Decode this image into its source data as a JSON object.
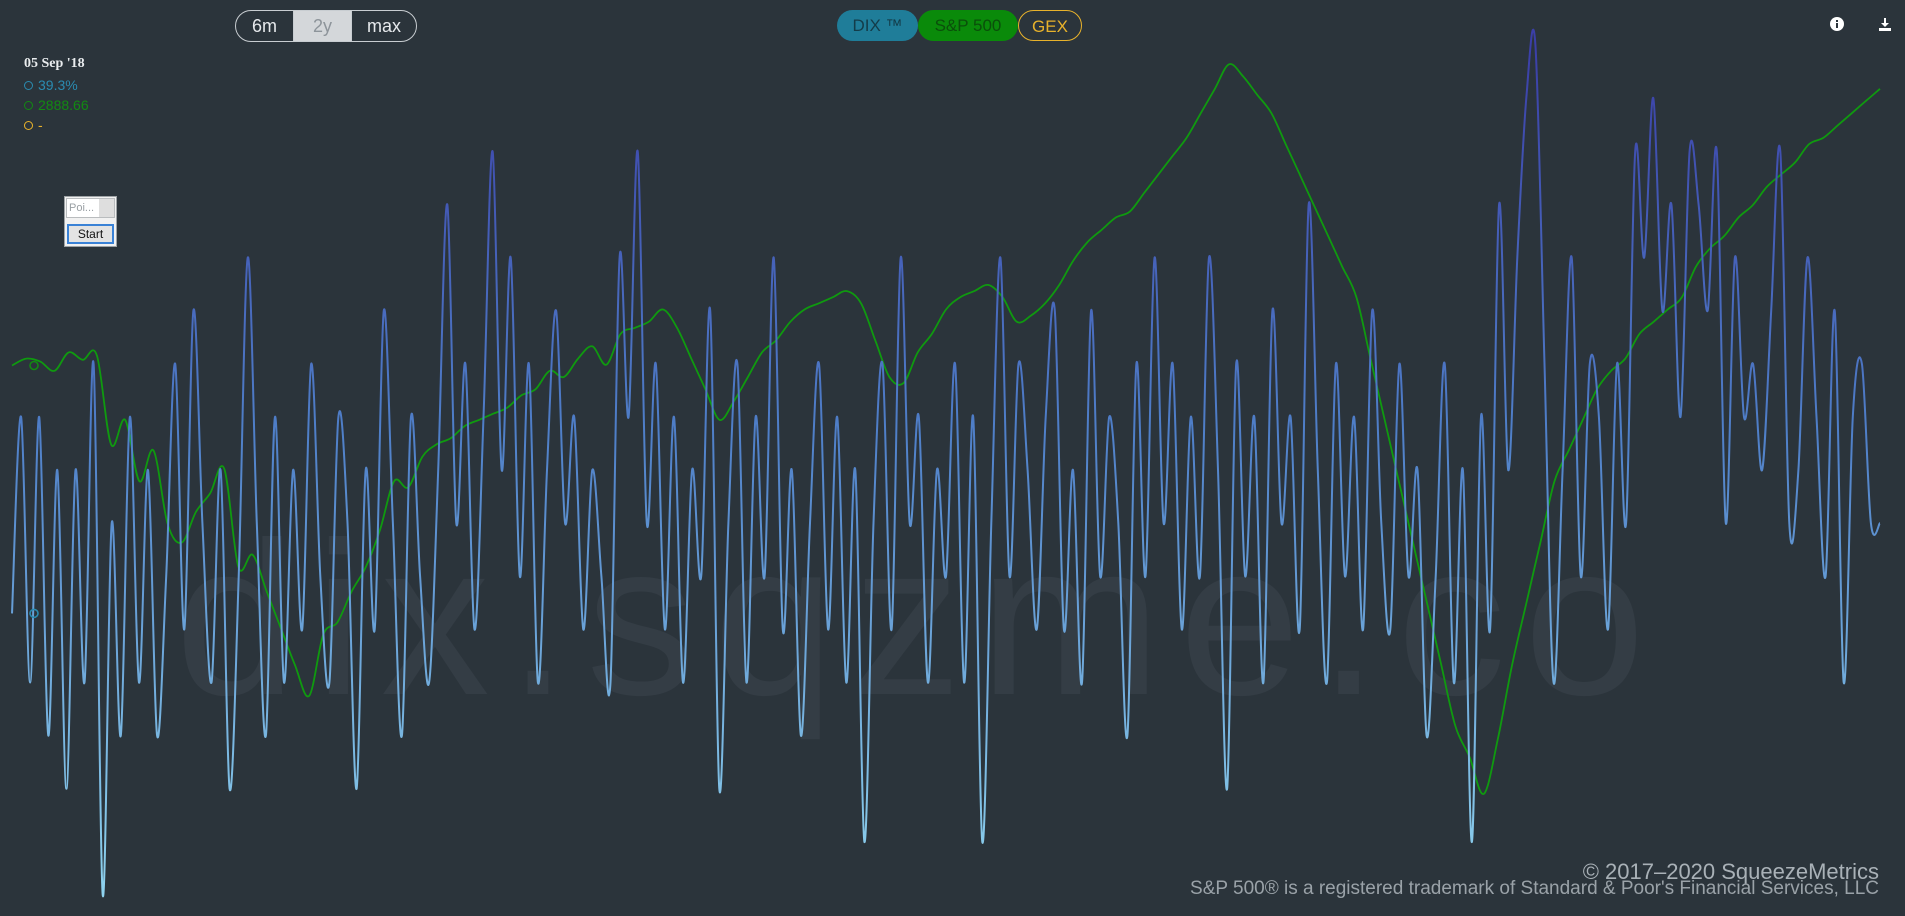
{
  "range_buttons": [
    {
      "label": "6m",
      "active": false
    },
    {
      "label": "2y",
      "active": true
    },
    {
      "label": "max",
      "active": false
    }
  ],
  "series_toggles": {
    "dix": "DIX ™",
    "spx": "S&P 500",
    "gex": "GEX"
  },
  "icons": {
    "info": "info-icon",
    "download": "download-icon"
  },
  "tooltip": {
    "date": "05 Sep '18",
    "dix_value": "39.3%",
    "spx_value": "2888.66",
    "gex_value": "-",
    "dix_color": "#2a8bb0",
    "spx_color": "#128a12",
    "gex_color": "#e8b22b"
  },
  "poi_widget": {
    "select_text": "Poi...",
    "start_label": "Start"
  },
  "watermark": "dix.sqzme.co",
  "footer": {
    "copyright": "© 2017–2020 SqueezeMetrics",
    "trademark": "S&P 500® is a registered trademark of Standard & Poor's Financial Services, LLC"
  },
  "colors": {
    "background": "#2b343b",
    "dix_line_light": "#7ec0e8",
    "dix_line_dark": "#3b56b2",
    "spx_line": "#0f9a0f",
    "gex": "#e8b22b"
  },
  "chart_data": {
    "type": "line",
    "title": "",
    "xlabel": "",
    "ylabel": "",
    "grid": false,
    "x_start": "05 Sep '18",
    "series": [
      {
        "name": "DIX ™",
        "unit": "%",
        "y_range": [
          34,
          50
        ],
        "values": [
          39.3,
          43,
          38,
          43,
          37,
          42,
          36,
          42,
          38,
          44,
          34,
          41,
          37,
          43,
          38,
          42,
          37,
          40,
          44,
          39,
          45,
          41,
          38,
          42,
          36,
          40,
          46,
          41,
          37,
          43,
          38,
          42,
          39,
          44,
          40,
          38,
          43,
          41,
          36,
          42,
          39,
          45,
          41,
          37,
          43,
          40,
          38,
          42,
          47,
          41,
          44,
          39,
          43,
          48,
          42,
          46,
          40,
          44,
          38,
          42,
          45,
          41,
          43,
          39,
          42,
          40,
          38,
          46,
          43,
          48,
          41,
          44,
          39,
          43,
          38,
          42,
          40,
          45,
          36,
          41,
          44,
          38,
          43,
          40,
          46,
          39,
          42,
          37,
          41,
          44,
          39,
          43,
          38,
          42,
          35,
          41,
          44,
          39,
          46,
          41,
          43,
          38,
          42,
          40,
          44,
          38,
          43,
          35,
          41,
          46,
          40,
          44,
          42,
          39,
          43,
          45,
          39,
          42,
          38,
          45,
          40,
          43,
          41,
          37,
          44,
          40,
          46,
          41,
          44,
          39,
          43,
          40,
          46,
          42,
          36,
          44,
          40,
          43,
          38,
          45,
          41,
          43,
          39,
          47,
          42,
          38,
          44,
          40,
          43,
          39,
          45,
          41,
          39,
          44,
          40,
          42,
          37,
          40,
          44,
          38,
          42,
          35,
          43,
          39,
          47,
          42,
          46,
          49,
          50,
          44,
          38,
          42,
          46,
          40,
          44,
          43,
          39,
          44,
          41,
          48,
          46,
          49,
          45,
          47,
          43,
          48,
          47,
          45,
          48,
          41,
          46,
          43,
          44,
          42,
          45,
          48,
          41,
          42,
          46,
          43,
          40,
          45,
          38,
          43,
          44,
          41,
          41
        ]
      },
      {
        "name": "S&P 500",
        "unit": "index",
        "y_range": [
          2180,
          3400
        ],
        "values": [
          2888.66,
          2900,
          2895,
          2880,
          2910,
          2898,
          2905,
          2760,
          2800,
          2700,
          2750,
          2630,
          2600,
          2650,
          2680,
          2720,
          2560,
          2580,
          2520,
          2460,
          2400,
          2350,
          2450,
          2470,
          2520,
          2560,
          2620,
          2700,
          2690,
          2740,
          2760,
          2770,
          2790,
          2800,
          2810,
          2820,
          2840,
          2850,
          2880,
          2870,
          2900,
          2920,
          2890,
          2940,
          2950,
          2960,
          2980,
          2950,
          2900,
          2850,
          2800,
          2830,
          2870,
          2910,
          2930,
          2960,
          2980,
          2990,
          3000,
          3010,
          2990,
          2930,
          2870,
          2860,
          2910,
          2940,
          2980,
          3000,
          3010,
          3020,
          3000,
          2960,
          2970,
          2990,
          3020,
          3060,
          3090,
          3110,
          3130,
          3140,
          3170,
          3200,
          3230,
          3260,
          3300,
          3340,
          3380,
          3360,
          3330,
          3300,
          3250,
          3200,
          3150,
          3100,
          3050,
          3000,
          2900,
          2800,
          2700,
          2600,
          2500,
          2400,
          2300,
          2250,
          2190,
          2280,
          2400,
          2500,
          2600,
          2700,
          2750,
          2800,
          2850,
          2880,
          2900,
          2940,
          2960,
          2980,
          3000,
          3050,
          3080,
          3100,
          3130,
          3150,
          3180,
          3200,
          3220,
          3250,
          3260,
          3280,
          3300,
          3320,
          3340
        ]
      },
      {
        "name": "GEX",
        "values": []
      }
    ]
  }
}
